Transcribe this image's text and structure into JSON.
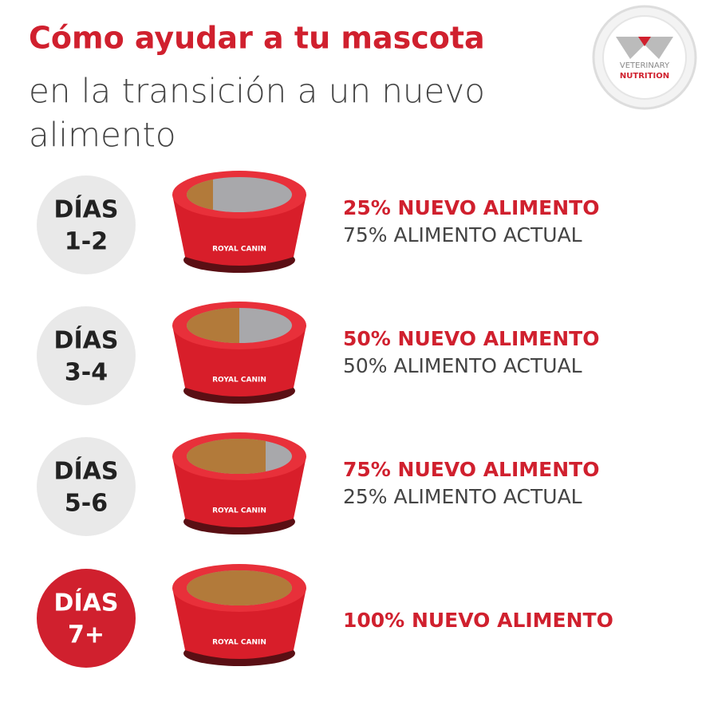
{
  "header": {
    "title": "Cómo ayudar a tu mascota",
    "subtitle_lines": [
      "en la transición a un nuevo",
      "alimento"
    ]
  },
  "logo": {
    "line1": "VETERINARY",
    "line2": "NUTRITION"
  },
  "bowl_brand": "ROYAL CANIN",
  "steps": [
    {
      "day_label": "DÍAS",
      "day_range": "1-2",
      "new_food": "25% NUEVO ALIMENTO",
      "current_food": "75% ALIMENTO ACTUAL",
      "circle_color": "#e9e9e9"
    },
    {
      "day_label": "DÍAS",
      "day_range": "3-4",
      "new_food": "50% NUEVO ALIMENTO",
      "current_food": "50% ALIMENTO ACTUAL",
      "circle_color": "#e9e9e9"
    },
    {
      "day_label": "DÍAS",
      "day_range": "5-6",
      "new_food": "75% NUEVO ALIMENTO",
      "current_food": "25% ALIMENTO ACTUAL",
      "circle_color": "#e9e9e9"
    },
    {
      "day_label": "DÍAS",
      "day_range": "7+",
      "new_food": "100% NUEVO ALIMENTO",
      "circle_color": "#d0202e"
    }
  ]
}
